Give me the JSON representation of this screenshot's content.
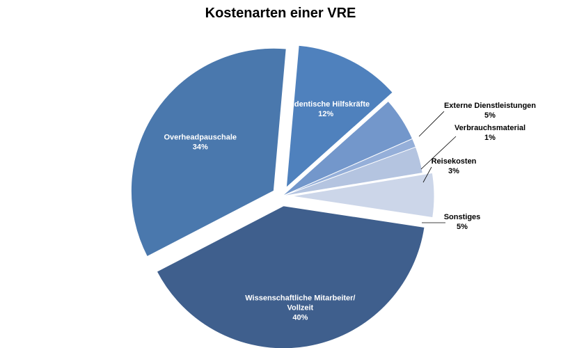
{
  "chart_data": {
    "type": "pie",
    "title": "Kostenarten einer VRE",
    "legend": "none",
    "slices": [
      {
        "name": "Studentische Hilfskräfte",
        "value": 12,
        "label": "12%",
        "color": "#4f81bd",
        "exploded": true
      },
      {
        "name": "Externe Dienstleistungen",
        "value": 5,
        "label": "5%",
        "color": "#7397cb",
        "exploded": false
      },
      {
        "name": "Verbrauchsmaterial",
        "value": 1,
        "label": "1%",
        "color": "#95afd9",
        "exploded": false
      },
      {
        "name": "Reisekosten",
        "value": 3,
        "label": "3%",
        "color": "#b4c4e0",
        "exploded": false
      },
      {
        "name": "Sonstiges",
        "value": 5,
        "label": "5%",
        "color": "#ccd6e9",
        "exploded": true
      },
      {
        "name": "Wissenschaftliche Mitarbeiter/ Vollzeit",
        "value": 40,
        "label": "40%",
        "color": "#3f5f8d",
        "exploded": true
      },
      {
        "name": "Overheadpauschale",
        "value": 34,
        "label": "34%",
        "color": "#4a78ad",
        "exploded": true
      }
    ]
  }
}
